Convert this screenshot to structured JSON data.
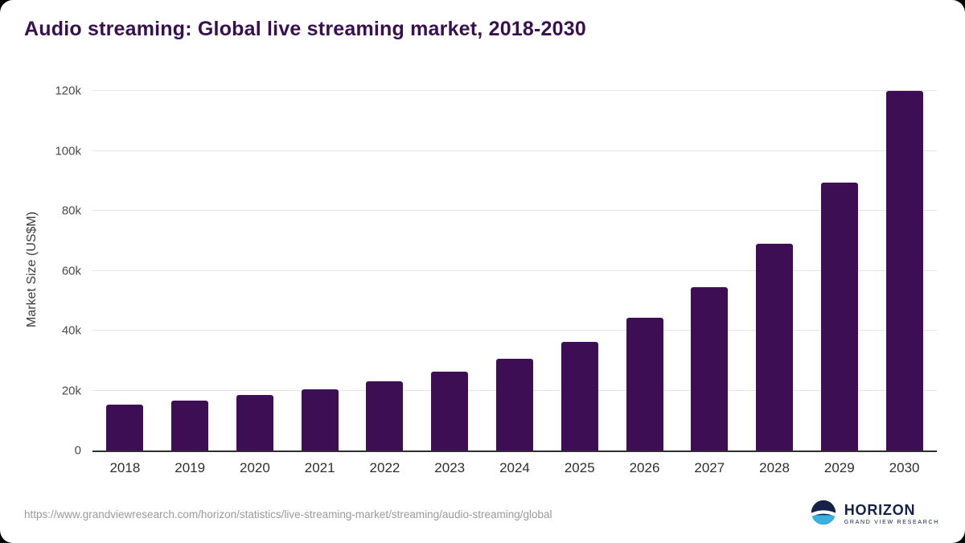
{
  "chart_data": {
    "type": "bar",
    "title": "Audio streaming: Global live streaming market, 2018-2030",
    "ylabel": "Market Size (US$M)",
    "xlabel": "",
    "categories": [
      "2018",
      "2019",
      "2020",
      "2021",
      "2022",
      "2023",
      "2024",
      "2025",
      "2026",
      "2027",
      "2028",
      "2029",
      "2030"
    ],
    "values": [
      15300,
      16700,
      18600,
      20500,
      23200,
      26400,
      30700,
      36200,
      44200,
      54400,
      68900,
      89500,
      120000
    ],
    "ylim": [
      0,
      120000
    ],
    "yticks": [
      {
        "value": 0,
        "label": "0"
      },
      {
        "value": 20000,
        "label": "20k"
      },
      {
        "value": 40000,
        "label": "40k"
      },
      {
        "value": 60000,
        "label": "60k"
      },
      {
        "value": 80000,
        "label": "80k"
      },
      {
        "value": 100000,
        "label": "100k"
      },
      {
        "value": 120000,
        "label": "120k"
      }
    ],
    "grid": true,
    "legend": false,
    "bar_color": "#3d0e54"
  },
  "footer": {
    "source_url": "https://www.grandviewresearch.com/horizon/statistics/live-streaming-market/streaming/audio-streaming/global",
    "logo": {
      "name": "HORIZON",
      "subtext": "GRAND VIEW RESEARCH"
    }
  },
  "colors": {
    "title": "#38104f",
    "bar": "#3d0e54",
    "grid": "#e4e4e4",
    "axis": "#2e2e2e",
    "logo_navy": "#152248",
    "logo_blue": "#38b1e2"
  }
}
